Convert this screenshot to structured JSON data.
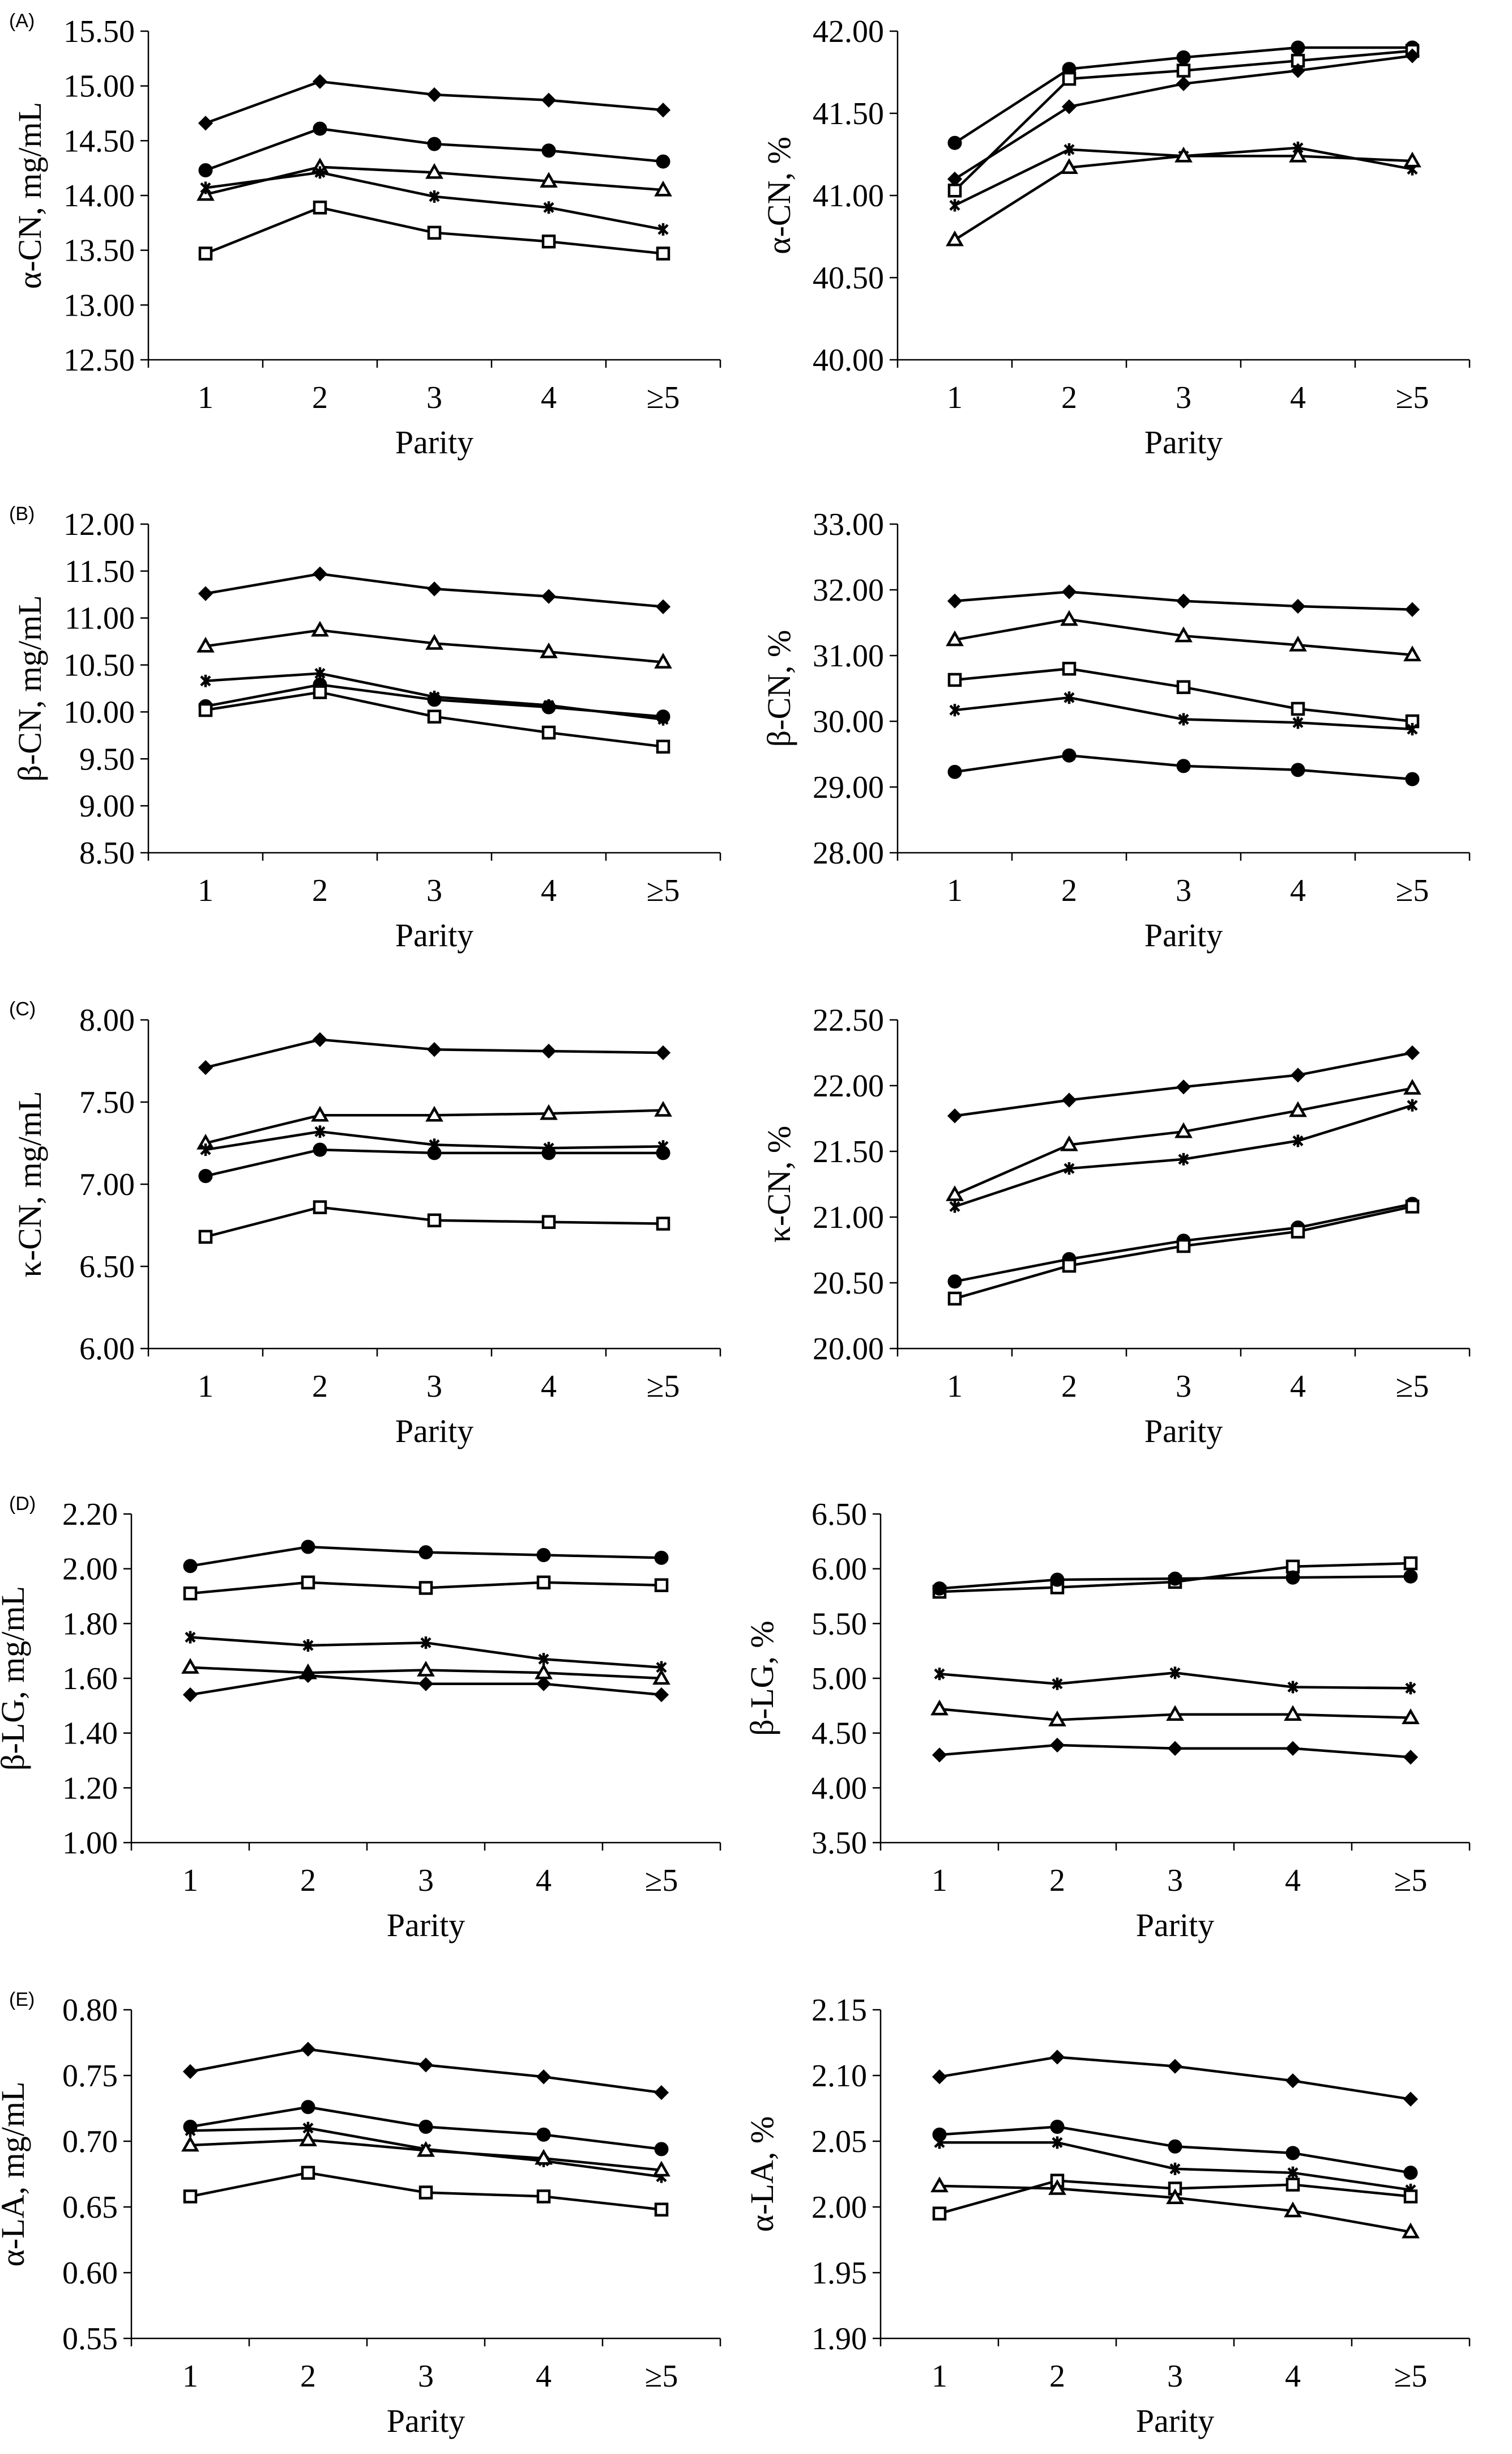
{
  "chart_data": [
    {
      "type": "line",
      "panel": "(A)",
      "title": "",
      "xlabel": "Parity",
      "ylabel": "α-CN, mg/mL",
      "categories": [
        "1",
        "2",
        "3",
        "4",
        "≥5"
      ],
      "ylim": [
        12.5,
        15.5
      ],
      "yticks": [
        "12.50",
        "13.00",
        "13.50",
        "14.00",
        "14.50",
        "15.00",
        "15.50"
      ],
      "series": [
        {
          "marker": "diamond",
          "values": [
            14.66,
            15.04,
            14.92,
            14.87,
            14.78
          ]
        },
        {
          "marker": "circle",
          "values": [
            14.23,
            14.61,
            14.47,
            14.41,
            14.31
          ]
        },
        {
          "marker": "triangle",
          "values": [
            14.01,
            14.26,
            14.21,
            14.13,
            14.05
          ]
        },
        {
          "marker": "star",
          "values": [
            14.07,
            14.21,
            13.99,
            13.89,
            13.69
          ]
        },
        {
          "marker": "square",
          "values": [
            13.47,
            13.89,
            13.66,
            13.58,
            13.47
          ]
        }
      ]
    },
    {
      "type": "line",
      "panel": "",
      "title": "",
      "xlabel": "Parity",
      "ylabel": "α-CN, %",
      "categories": [
        "1",
        "2",
        "3",
        "4",
        "≥5"
      ],
      "ylim": [
        40.0,
        42.0
      ],
      "yticks": [
        "40.00",
        "40.50",
        "41.00",
        "41.50",
        "42.00"
      ],
      "series": [
        {
          "marker": "circle",
          "values": [
            41.32,
            41.77,
            41.84,
            41.9,
            41.9
          ]
        },
        {
          "marker": "square",
          "values": [
            41.03,
            41.71,
            41.76,
            41.82,
            41.88
          ]
        },
        {
          "marker": "diamond",
          "values": [
            41.1,
            41.54,
            41.68,
            41.76,
            41.85
          ]
        },
        {
          "marker": "star",
          "values": [
            40.94,
            41.28,
            41.24,
            41.29,
            41.16
          ]
        },
        {
          "marker": "triangle",
          "values": [
            40.73,
            41.17,
            41.24,
            41.24,
            41.21
          ]
        }
      ]
    },
    {
      "type": "line",
      "panel": "(B)",
      "title": "",
      "xlabel": "Parity",
      "ylabel": "β-CN, mg/mL",
      "categories": [
        "1",
        "2",
        "3",
        "4",
        "≥5"
      ],
      "ylim": [
        8.5,
        12.0
      ],
      "yticks": [
        "8.50",
        "9.00",
        "9.50",
        "10.00",
        "10.50",
        "11.00",
        "11.50",
        "12.00"
      ],
      "series": [
        {
          "marker": "diamond",
          "values": [
            11.26,
            11.47,
            11.31,
            11.23,
            11.12
          ]
        },
        {
          "marker": "triangle",
          "values": [
            10.7,
            10.87,
            10.73,
            10.64,
            10.53
          ]
        },
        {
          "marker": "star",
          "values": [
            10.33,
            10.41,
            10.16,
            10.07,
            9.92
          ]
        },
        {
          "marker": "circle",
          "values": [
            10.06,
            10.29,
            10.13,
            10.05,
            9.95
          ]
        },
        {
          "marker": "square",
          "values": [
            10.02,
            10.21,
            9.95,
            9.78,
            9.63
          ]
        }
      ]
    },
    {
      "type": "line",
      "panel": "",
      "title": "",
      "xlabel": "Parity",
      "ylabel": "β-CN, %",
      "categories": [
        "1",
        "2",
        "3",
        "4",
        "≥5"
      ],
      "ylim": [
        28.0,
        33.0
      ],
      "yticks": [
        "28.00",
        "29.00",
        "30.00",
        "31.00",
        "32.00",
        "33.00"
      ],
      "series": [
        {
          "marker": "diamond",
          "values": [
            31.83,
            31.97,
            31.83,
            31.75,
            31.7
          ]
        },
        {
          "marker": "triangle",
          "values": [
            31.24,
            31.55,
            31.3,
            31.16,
            31.01
          ]
        },
        {
          "marker": "square",
          "values": [
            30.63,
            30.8,
            30.52,
            30.19,
            30.0
          ]
        },
        {
          "marker": "star",
          "values": [
            30.17,
            30.36,
            30.03,
            29.98,
            29.88
          ]
        },
        {
          "marker": "circle",
          "values": [
            29.23,
            29.48,
            29.32,
            29.26,
            29.12
          ]
        }
      ]
    },
    {
      "type": "line",
      "panel": "(C)",
      "title": "",
      "xlabel": "Parity",
      "ylabel": "κ-CN, mg/mL",
      "categories": [
        "1",
        "2",
        "3",
        "4",
        "≥5"
      ],
      "ylim": [
        6.0,
        8.0
      ],
      "yticks": [
        "6.00",
        "6.50",
        "7.00",
        "7.50",
        "8.00"
      ],
      "series": [
        {
          "marker": "diamond",
          "values": [
            7.71,
            7.88,
            7.82,
            7.81,
            7.8
          ]
        },
        {
          "marker": "triangle",
          "values": [
            7.25,
            7.42,
            7.42,
            7.43,
            7.45
          ]
        },
        {
          "marker": "star",
          "values": [
            7.21,
            7.32,
            7.24,
            7.22,
            7.23
          ]
        },
        {
          "marker": "circle",
          "values": [
            7.05,
            7.21,
            7.19,
            7.19,
            7.19
          ]
        },
        {
          "marker": "square",
          "values": [
            6.68,
            6.86,
            6.78,
            6.77,
            6.76
          ]
        }
      ]
    },
    {
      "type": "line",
      "panel": "",
      "title": "",
      "xlabel": "Parity",
      "ylabel": "κ-CN, %",
      "categories": [
        "1",
        "2",
        "3",
        "4",
        "≥5"
      ],
      "ylim": [
        20.0,
        22.5
      ],
      "yticks": [
        "20.00",
        "20.50",
        "21.00",
        "21.50",
        "22.00",
        "22.50"
      ],
      "series": [
        {
          "marker": "diamond",
          "values": [
            21.77,
            21.89,
            21.99,
            22.08,
            22.25
          ]
        },
        {
          "marker": "triangle",
          "values": [
            21.17,
            21.55,
            21.65,
            21.81,
            21.98
          ]
        },
        {
          "marker": "star",
          "values": [
            21.08,
            21.37,
            21.44,
            21.58,
            21.85
          ]
        },
        {
          "marker": "circle",
          "values": [
            20.51,
            20.68,
            20.82,
            20.92,
            21.1
          ]
        },
        {
          "marker": "square",
          "values": [
            20.38,
            20.63,
            20.78,
            20.89,
            21.08
          ]
        }
      ]
    },
    {
      "type": "line",
      "panel": "(D)",
      "title": "",
      "xlabel": "Parity",
      "ylabel": "β-LG, mg/mL",
      "categories": [
        "1",
        "2",
        "3",
        "4",
        "≥5"
      ],
      "ylim": [
        1.0,
        2.2
      ],
      "yticks": [
        "1.00",
        "1.20",
        "1.40",
        "1.60",
        "1.80",
        "2.00",
        "2.20"
      ],
      "series": [
        {
          "marker": "circle",
          "values": [
            2.01,
            2.08,
            2.06,
            2.05,
            2.04
          ]
        },
        {
          "marker": "square",
          "values": [
            1.91,
            1.95,
            1.93,
            1.95,
            1.94
          ]
        },
        {
          "marker": "star",
          "values": [
            1.75,
            1.72,
            1.73,
            1.67,
            1.64
          ]
        },
        {
          "marker": "triangle",
          "values": [
            1.64,
            1.62,
            1.63,
            1.62,
            1.6
          ]
        },
        {
          "marker": "diamond",
          "values": [
            1.54,
            1.61,
            1.58,
            1.58,
            1.54
          ]
        }
      ]
    },
    {
      "type": "line",
      "panel": "",
      "title": "",
      "xlabel": "Parity",
      "ylabel": "β-LG, %",
      "categories": [
        "1",
        "2",
        "3",
        "4",
        "≥5"
      ],
      "ylim": [
        3.5,
        6.5
      ],
      "yticks": [
        "3.50",
        "4.00",
        "4.50",
        "5.00",
        "5.50",
        "6.00",
        "6.50"
      ],
      "series": [
        {
          "marker": "square",
          "values": [
            5.79,
            5.83,
            5.88,
            6.02,
            6.05
          ]
        },
        {
          "marker": "circle",
          "values": [
            5.82,
            5.9,
            5.91,
            5.92,
            5.93
          ]
        },
        {
          "marker": "star",
          "values": [
            5.04,
            4.95,
            5.05,
            4.92,
            4.91
          ]
        },
        {
          "marker": "triangle",
          "values": [
            4.72,
            4.62,
            4.67,
            4.67,
            4.64
          ]
        },
        {
          "marker": "diamond",
          "values": [
            4.3,
            4.39,
            4.36,
            4.36,
            4.28
          ]
        }
      ]
    },
    {
      "type": "line",
      "panel": "(E)",
      "title": "",
      "xlabel": "Parity",
      "ylabel": "α-LA, mg/mL",
      "categories": [
        "1",
        "2",
        "3",
        "4",
        "≥5"
      ],
      "ylim": [
        0.55,
        0.8
      ],
      "yticks": [
        "0.55",
        "0.60",
        "0.65",
        "0.70",
        "0.75",
        "0.80"
      ],
      "series": [
        {
          "marker": "diamond",
          "values": [
            0.753,
            0.77,
            0.758,
            0.749,
            0.737
          ]
        },
        {
          "marker": "circle",
          "values": [
            0.711,
            0.726,
            0.711,
            0.705,
            0.694
          ]
        },
        {
          "marker": "star",
          "values": [
            0.708,
            0.71,
            0.694,
            0.685,
            0.673
          ]
        },
        {
          "marker": "triangle",
          "values": [
            0.697,
            0.701,
            0.693,
            0.687,
            0.678
          ]
        },
        {
          "marker": "square",
          "values": [
            0.658,
            0.676,
            0.661,
            0.658,
            0.648
          ]
        }
      ]
    },
    {
      "type": "line",
      "panel": "",
      "title": "",
      "xlabel": "Parity",
      "ylabel": "α-LA, %",
      "categories": [
        "1",
        "2",
        "3",
        "4",
        "≥5"
      ],
      "ylim": [
        1.9,
        2.15
      ],
      "yticks": [
        "1.90",
        "1.95",
        "2.00",
        "2.05",
        "2.10",
        "2.15"
      ],
      "series": [
        {
          "marker": "diamond",
          "values": [
            2.099,
            2.114,
            2.107,
            2.096,
            2.082
          ]
        },
        {
          "marker": "circle",
          "values": [
            2.055,
            2.061,
            2.046,
            2.041,
            2.026
          ]
        },
        {
          "marker": "star",
          "values": [
            2.049,
            2.049,
            2.029,
            2.026,
            2.013
          ]
        },
        {
          "marker": "square",
          "values": [
            1.995,
            2.02,
            2.014,
            2.017,
            2.008
          ]
        },
        {
          "marker": "triangle",
          "values": [
            2.016,
            2.014,
            2.007,
            1.997,
            1.981
          ]
        }
      ]
    }
  ]
}
